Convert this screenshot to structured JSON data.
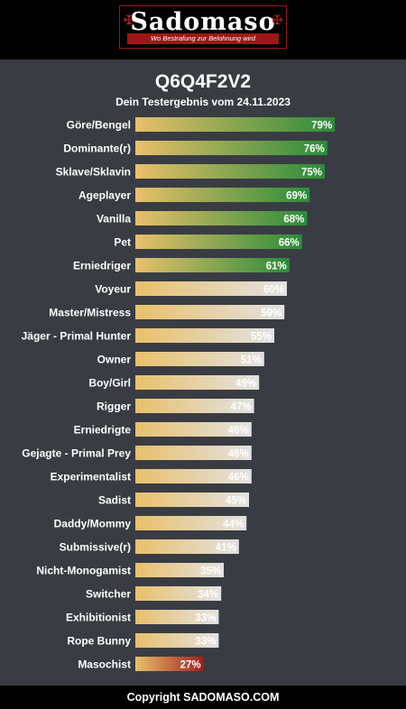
{
  "brand": {
    "name": "Sadomaso",
    "tagline": "Wo Bestrafung zur Belohnung wird"
  },
  "result": {
    "id": "Q6Q4F2V2",
    "subtitle": "Dein Testergebnis vom 24.11.2023"
  },
  "colors": {
    "background": "#393c43",
    "bar_start": "#e9c06a",
    "bar_high_end": "#2a8c3a",
    "bar_mid_end": "#e2e2e2",
    "bar_low_end": "#9e1e1e"
  },
  "chart_data": {
    "type": "bar",
    "orientation": "horizontal",
    "categories": [
      "Göre/Bengel",
      "Dominante(r)",
      "Sklave/Sklavin",
      "Ageplayer",
      "Vanilla",
      "Pet",
      "Erniedriger",
      "Voyeur",
      "Master/Mistress",
      "Jäger - Primal Hunter",
      "Owner",
      "Boy/Girl",
      "Rigger",
      "Erniedrigte",
      "Gejagte - Primal Prey",
      "Experimentalist",
      "Sadist",
      "Daddy/Mommy",
      "Submissive(r)",
      "Nicht-Monogamist",
      "Switcher",
      "Exhibitionist",
      "Rope Bunny",
      "Masochist"
    ],
    "values": [
      79,
      76,
      75,
      69,
      68,
      66,
      61,
      60,
      59,
      55,
      51,
      49,
      47,
      46,
      46,
      46,
      45,
      44,
      41,
      35,
      34,
      33,
      33,
      27
    ],
    "labels": [
      "79%",
      "76%",
      "75%",
      "69%",
      "68%",
      "66%",
      "61%",
      "60%",
      "59%",
      "55%",
      "51%",
      "49%",
      "47%",
      "46%",
      "46%",
      "46%",
      "45%",
      "44%",
      "41%",
      "35%",
      "34%",
      "33%",
      "33%",
      "27%"
    ],
    "xlim": [
      0,
      100
    ],
    "grid": false,
    "legend": "none"
  },
  "footer": {
    "text": "Copyright SADOMASO.COM"
  }
}
